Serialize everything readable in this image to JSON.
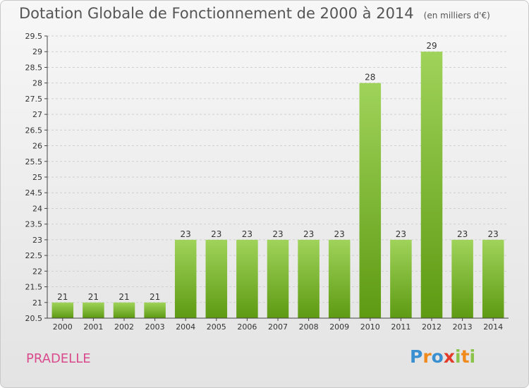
{
  "header": {
    "title": "Dotation Globale de Fonctionnement de 2000 à 2014",
    "unit": "(en milliers d'€)"
  },
  "commune": "PRADELLE",
  "logo": {
    "text": "Proxiti",
    "letters": [
      {
        "ch": "P",
        "color": "#3a8fd0"
      },
      {
        "ch": "r",
        "color": "#f08a1c"
      },
      {
        "ch": "o",
        "color": "#3a8fd0"
      },
      {
        "ch": "x",
        "color": "#e23b2a"
      },
      {
        "ch": "i",
        "color": "#8bc34a"
      },
      {
        "ch": "t",
        "color": "#f08a1c"
      },
      {
        "ch": "i",
        "color": "#8bc34a"
      }
    ]
  },
  "chart_data": {
    "type": "bar",
    "title": "Dotation Globale de Fonctionnement de 2000 à 2014",
    "subtitle": "(en milliers d'€)",
    "categories": [
      "2000",
      "2001",
      "2002",
      "2003",
      "2004",
      "2005",
      "2006",
      "2007",
      "2008",
      "2009",
      "2010",
      "2011",
      "2012",
      "2013",
      "2014"
    ],
    "values": [
      21,
      21,
      21,
      21,
      23,
      23,
      23,
      23,
      23,
      23,
      28,
      23,
      29,
      23,
      23
    ],
    "data_labels": [
      "21",
      "21",
      "21",
      "21",
      "23",
      "23",
      "23",
      "23",
      "23",
      "23",
      "28",
      "23",
      "29",
      "23",
      "23"
    ],
    "ylim": [
      20.5,
      29.5
    ],
    "yticks": [
      20.5,
      21,
      21.5,
      22,
      22.5,
      23,
      23.5,
      24,
      24.5,
      25,
      25.5,
      26,
      26.5,
      27,
      27.5,
      28,
      28.5,
      29,
      29.5
    ],
    "ytick_labels": [
      "20.5",
      "21",
      "21.5",
      "22",
      "22.5",
      "23",
      "23.5",
      "24",
      "24.5",
      "25",
      "25.5",
      "26",
      "26.5",
      "27",
      "27.5",
      "28",
      "28.5",
      "29",
      "29.5"
    ],
    "grid": true,
    "colors": {
      "bar_top": "#9fd35a",
      "bar_bottom": "#5e9a12",
      "grid": "#cfcfcf",
      "axis": "#444444",
      "text": "#333333"
    }
  }
}
